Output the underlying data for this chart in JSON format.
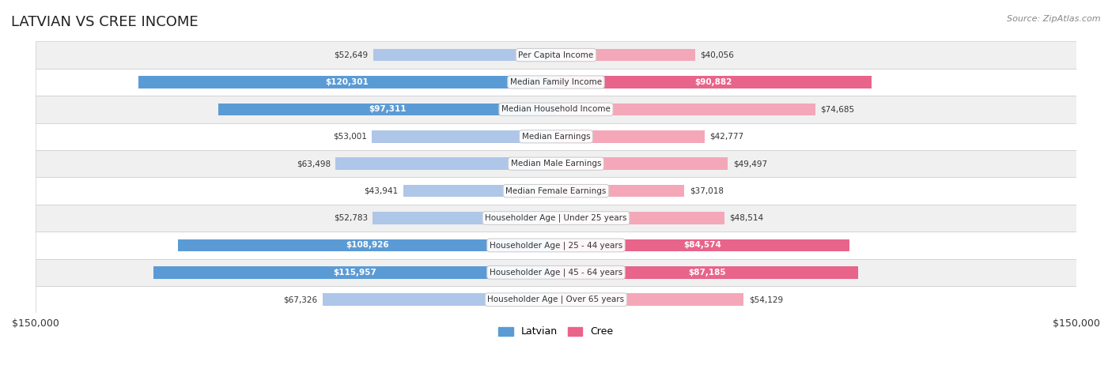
{
  "title": "LATVIAN VS CREE INCOME",
  "source": "Source: ZipAtlas.com",
  "categories": [
    "Per Capita Income",
    "Median Family Income",
    "Median Household Income",
    "Median Earnings",
    "Median Male Earnings",
    "Median Female Earnings",
    "Householder Age | Under 25 years",
    "Householder Age | 25 - 44 years",
    "Householder Age | 45 - 64 years",
    "Householder Age | Over 65 years"
  ],
  "latvian_values": [
    52649,
    120301,
    97311,
    53001,
    63498,
    43941,
    52783,
    108926,
    115957,
    67326
  ],
  "cree_values": [
    40056,
    90882,
    74685,
    42777,
    49497,
    37018,
    48514,
    84574,
    87185,
    54129
  ],
  "latvian_labels": [
    "$52,649",
    "$120,301",
    "$97,311",
    "$53,001",
    "$63,498",
    "$43,941",
    "$52,783",
    "$108,926",
    "$115,957",
    "$67,326"
  ],
  "cree_labels": [
    "$40,056",
    "$90,882",
    "$74,685",
    "$42,777",
    "$49,497",
    "$37,018",
    "$48,514",
    "$84,574",
    "$87,185",
    "$54,129"
  ],
  "max_value": 150000,
  "latvian_color_light": "#aec6e8",
  "latvian_color_strong": "#5b9bd5",
  "cree_color_light": "#f4a7b9",
  "cree_color_strong": "#e8648a",
  "label_threshold": 80000,
  "bg_row_color": "#f0f0f0",
  "bg_alt_color": "#ffffff",
  "legend_latvian_color": "#5b9bd5",
  "legend_cree_color": "#e8648a"
}
